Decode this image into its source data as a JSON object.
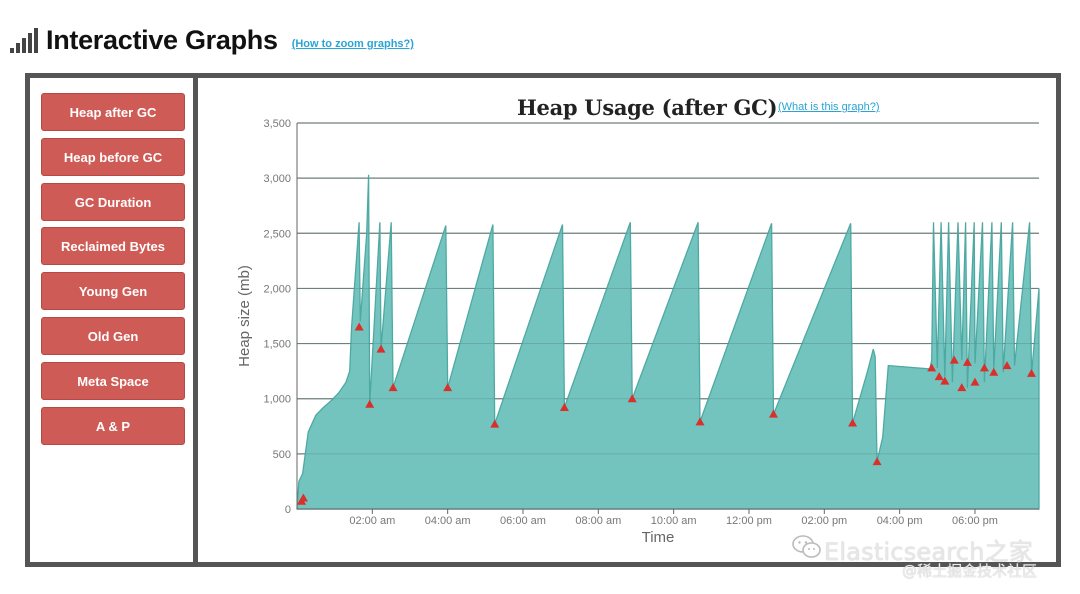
{
  "header": {
    "title": "Interactive Graphs",
    "zoom_link": "(How to zoom graphs?)",
    "icon": "signal-bars-icon"
  },
  "nav": {
    "buttons": [
      {
        "label": "Heap after GC"
      },
      {
        "label": "Heap before GC"
      },
      {
        "label": "GC Duration"
      },
      {
        "label": "Reclaimed Bytes"
      },
      {
        "label": "Young Gen"
      },
      {
        "label": "Old Gen"
      },
      {
        "label": "Meta Space"
      },
      {
        "label": "A & P"
      }
    ],
    "button_color": "#cf5b56"
  },
  "chart": {
    "title": "Heap Usage (after GC)",
    "what_link": "(What is this graph?)"
  },
  "watermark": {
    "line1": "Elasticsearch之家",
    "line2": "@稀土掘金技术社区",
    "icon": "wechat-icon"
  },
  "chart_data": {
    "type": "area",
    "title": "Heap Usage (after GC)",
    "xlabel": "Time",
    "ylabel": "Heap size (mb)",
    "ylim": [
      0,
      3500
    ],
    "yticks": [
      0,
      500,
      1000,
      1500,
      2000,
      2500,
      3000,
      3500
    ],
    "ytick_labels": [
      "0",
      "500",
      "1,000",
      "1,500",
      "2,000",
      "2,500",
      "3,000",
      "3,500"
    ],
    "xlim": [
      0,
      19.7
    ],
    "xticks": [
      2,
      4,
      6,
      8,
      10,
      12,
      14,
      16,
      18
    ],
    "xtick_labels": [
      "02:00 am",
      "04:00 am",
      "06:00 am",
      "08:00 am",
      "10:00 am",
      "12:00 pm",
      "02:00 pm",
      "04:00 pm",
      "06:00 pm"
    ],
    "grid": true,
    "area_color": "#73c4bf",
    "line_color": "#4fa9a3",
    "marker_color": "#d9302c",
    "series": [
      {
        "type": "area",
        "points": [
          [
            0,
            0
          ],
          [
            0.05,
            250
          ],
          [
            0.15,
            320
          ],
          [
            0.3,
            700
          ],
          [
            0.5,
            850
          ],
          [
            0.7,
            920
          ],
          [
            0.9,
            980
          ],
          [
            1.1,
            1050
          ],
          [
            1.3,
            1150
          ],
          [
            1.4,
            1250
          ],
          [
            1.45,
            1650
          ],
          [
            1.65,
            2600
          ],
          [
            1.68,
            1700
          ],
          [
            1.85,
            2500
          ],
          [
            1.9,
            3030
          ],
          [
            1.93,
            950
          ],
          [
            2.2,
            2600
          ],
          [
            2.23,
            1450
          ],
          [
            2.5,
            2600
          ],
          [
            2.55,
            1100
          ],
          [
            3.95,
            2570
          ],
          [
            4.0,
            1100
          ],
          [
            5.2,
            2580
          ],
          [
            5.25,
            770
          ],
          [
            7.05,
            2580
          ],
          [
            7.1,
            920
          ],
          [
            8.85,
            2600
          ],
          [
            8.9,
            1000
          ],
          [
            10.65,
            2600
          ],
          [
            10.7,
            790
          ],
          [
            12.6,
            2590
          ],
          [
            12.65,
            860
          ],
          [
            14.7,
            2590
          ],
          [
            14.75,
            780
          ],
          [
            15.15,
            1250
          ],
          [
            15.3,
            1450
          ],
          [
            15.35,
            1380
          ],
          [
            15.4,
            430
          ],
          [
            15.55,
            650
          ],
          [
            15.7,
            1300
          ],
          [
            16.8,
            1270
          ],
          [
            16.85,
            1350
          ],
          [
            16.9,
            2600
          ],
          [
            17.0,
            1280
          ],
          [
            17.1,
            2600
          ],
          [
            17.2,
            1200
          ],
          [
            17.3,
            2600
          ],
          [
            17.4,
            1150
          ],
          [
            17.55,
            2600
          ],
          [
            17.65,
            1350
          ],
          [
            17.75,
            2600
          ],
          [
            17.8,
            1100
          ],
          [
            17.98,
            2600
          ],
          [
            18.0,
            1320
          ],
          [
            18.2,
            2600
          ],
          [
            18.25,
            1150
          ],
          [
            18.45,
            2600
          ],
          [
            18.5,
            1270
          ],
          [
            18.7,
            2600
          ],
          [
            18.75,
            1240
          ],
          [
            19.0,
            2600
          ],
          [
            19.05,
            1300
          ],
          [
            19.45,
            2600
          ],
          [
            19.5,
            1220
          ],
          [
            19.7,
            2000
          ]
        ]
      }
    ],
    "gc_markers": [
      [
        0.12,
        70
      ],
      [
        0.17,
        100
      ],
      [
        1.65,
        1650
      ],
      [
        1.93,
        950
      ],
      [
        2.23,
        1450
      ],
      [
        2.55,
        1100
      ],
      [
        4.0,
        1100
      ],
      [
        5.25,
        770
      ],
      [
        7.1,
        920
      ],
      [
        8.9,
        1000
      ],
      [
        10.7,
        790
      ],
      [
        12.65,
        860
      ],
      [
        14.75,
        780
      ],
      [
        15.4,
        430
      ],
      [
        16.85,
        1280
      ],
      [
        17.05,
        1200
      ],
      [
        17.2,
        1160
      ],
      [
        17.45,
        1350
      ],
      [
        17.65,
        1100
      ],
      [
        17.8,
        1330
      ],
      [
        18.0,
        1150
      ],
      [
        18.25,
        1280
      ],
      [
        18.5,
        1240
      ],
      [
        18.85,
        1300
      ],
      [
        19.5,
        1230
      ]
    ]
  }
}
